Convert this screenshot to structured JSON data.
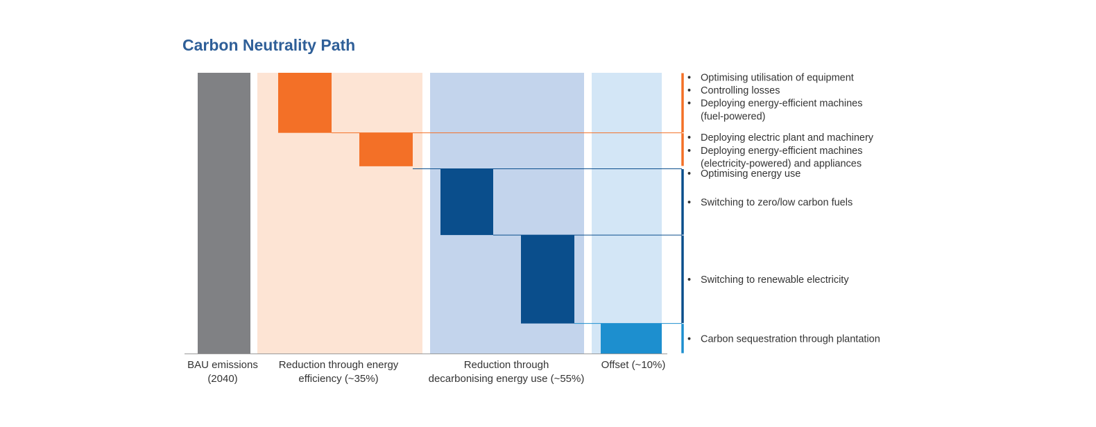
{
  "chart_data": {
    "type": "bar",
    "title": "Carbon Neutrality Path",
    "xlabel": "",
    "ylabel": "",
    "ylim": [
      0,
      100
    ],
    "grid": false,
    "legend": "none",
    "colors": {
      "bau": "#808184",
      "efficiency": "#f37027",
      "decarbonising": "#0a4e8c",
      "offset": "#1d8fcf",
      "band_efficiency": "#fde4d4",
      "band_decarbonising": "#c3d4ec",
      "band_offset": "#d3e6f6",
      "leader": "#3a3a3a"
    },
    "groups": [
      {
        "key": "bau",
        "label": [
          "BAU emissions",
          "(2040)"
        ]
      },
      {
        "key": "efficiency",
        "label": [
          "Reduction through energy",
          "efficiency (~35%)"
        ]
      },
      {
        "key": "decarbonising",
        "label": [
          "Reduction through",
          "decarbonising energy use (~55%)"
        ]
      },
      {
        "key": "offset",
        "label": [
          "Offset (~10%)"
        ]
      }
    ],
    "bars": [
      {
        "group": "bau",
        "start": 0,
        "end": 100,
        "color": "bau"
      },
      {
        "group": "efficiency",
        "start": 78.6,
        "end": 100,
        "color": "efficiency"
      },
      {
        "group": "efficiency",
        "start": 66.7,
        "end": 78.6,
        "color": "efficiency"
      },
      {
        "group": "decarbonising",
        "start": 42.2,
        "end": 65.8,
        "color": "decarbonising"
      },
      {
        "group": "decarbonising",
        "start": 10.7,
        "end": 42.2,
        "color": "decarbonising"
      },
      {
        "group": "offset",
        "start": 0,
        "end": 10.7,
        "color": "offset"
      }
    ],
    "annotation_groups": [
      {
        "color": "efficiency",
        "start": 78.6,
        "end": 100,
        "bullets": [
          [
            "Optimising utilisation of equipment"
          ],
          [
            "Controlling losses"
          ],
          [
            "Deploying energy-efficient machines",
            "(fuel-powered)"
          ]
        ]
      },
      {
        "color": "efficiency",
        "start": 66.7,
        "end": 78.6,
        "bullets": [
          [
            "Deploying electric plant and machinery"
          ],
          [
            "Deploying energy-efficient machines",
            "(electricity-powered) and appliances"
          ]
        ]
      },
      {
        "color": "decarbonising",
        "start": 42.2,
        "end": 65.8,
        "bullets": [
          [
            "Optimising energy use"
          ],
          [
            "Switching to zero/low carbon fuels"
          ]
        ]
      },
      {
        "color": "decarbonising",
        "start": 10.7,
        "end": 42.2,
        "bullets": [
          [
            "Switching to renewable electricity"
          ]
        ]
      },
      {
        "color": "offset",
        "start": 0,
        "end": 10.7,
        "bullets": [
          [
            "Carbon sequestration through plantation"
          ]
        ]
      }
    ]
  }
}
